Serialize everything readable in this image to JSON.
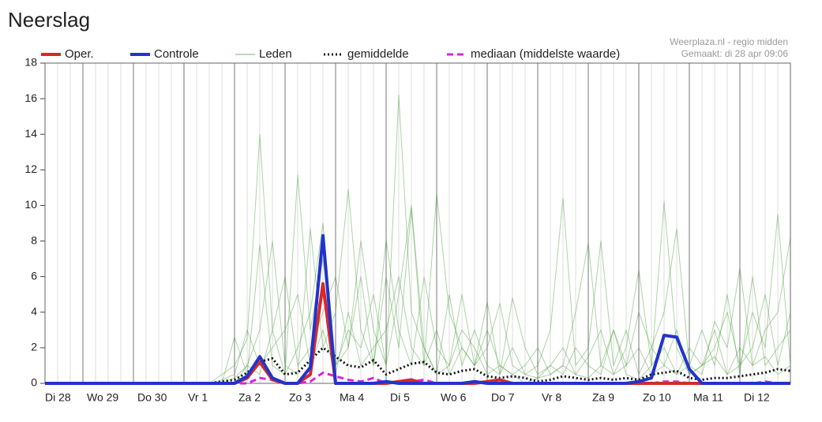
{
  "chart_data": {
    "type": "line",
    "title": "Neerslag",
    "annotations": [
      "Weerplaza.nl - regio midden",
      "Gemaakt: di 28 apr 09:06"
    ],
    "categories": [
      "Di 28",
      null,
      null,
      "Wo 29",
      null,
      null,
      null,
      "Do 30",
      null,
      null,
      null,
      "Vr 1",
      null,
      null,
      null,
      "Za 2",
      null,
      null,
      null,
      "Zo 3",
      null,
      null,
      null,
      "Ma 4",
      null,
      null,
      null,
      "Di 5",
      null,
      null,
      null,
      "Wo 6",
      null,
      null,
      null,
      "Do 7",
      null,
      null,
      null,
      "Vr 8",
      null,
      null,
      null,
      "Za 9",
      null,
      null,
      null,
      "Zo 10",
      null,
      null,
      null,
      "Ma 11",
      null,
      null,
      null,
      "Di 12",
      null,
      null,
      null,
      null
    ],
    "ylim": [
      0,
      18
    ],
    "yticks": [
      0,
      2,
      4,
      6,
      8,
      10,
      12,
      14,
      16,
      18
    ],
    "grid": true,
    "series": [
      {
        "name": "Oper.",
        "color": "#d42a2a",
        "width": 4,
        "values": [
          0,
          0,
          0,
          0,
          0,
          0,
          0,
          0,
          0,
          0,
          0,
          0,
          0,
          0,
          0,
          0,
          0.3,
          1.2,
          0.2,
          0,
          0,
          0.5,
          5.6,
          0,
          0,
          0,
          0,
          0,
          0.1,
          0.2,
          0,
          0,
          0,
          0,
          0,
          0.1,
          0.2,
          0,
          0,
          0,
          0,
          0,
          0,
          0,
          0,
          0,
          0,
          0,
          0,
          0,
          0,
          0,
          0,
          0,
          0,
          0,
          0,
          0,
          0,
          0
        ]
      },
      {
        "name": "Controle",
        "color": "#2233cc",
        "width": 4,
        "values": [
          0,
          0,
          0,
          0,
          0,
          0,
          0,
          0,
          0,
          0,
          0,
          0,
          0,
          0,
          0,
          0,
          0.4,
          1.5,
          0.3,
          0,
          0,
          0.9,
          8.3,
          0,
          0,
          0,
          0,
          0.1,
          0,
          0,
          0,
          0,
          0,
          0,
          0.1,
          0,
          0,
          0,
          0,
          0,
          0,
          0,
          0,
          0,
          0,
          0,
          0,
          0.1,
          0.3,
          2.7,
          2.6,
          0.8,
          0,
          0,
          0,
          0,
          0,
          0,
          0,
          0
        ]
      },
      {
        "name": "Leden",
        "color": "#4a9e3a",
        "width": 1,
        "members": [
          [
            0,
            0,
            0,
            0,
            0,
            0,
            0,
            0,
            0,
            0,
            0,
            0,
            0,
            0,
            0.5,
            1.0,
            2.5,
            14,
            3.0,
            0.5,
            2.0,
            4.0,
            9.0,
            1.0,
            3.0,
            2.0,
            5.0,
            1.0,
            16.2,
            4.0,
            2.0,
            0.5,
            1.0,
            3.0,
            2.0,
            0.5,
            1.0,
            0.5,
            0,
            0.3,
            1.0,
            2.0,
            0.5,
            0.3,
            1.0,
            3.0,
            0.5,
            0.2,
            1.0,
            10.2,
            2.0,
            0.5,
            1.0,
            3.0,
            0.5,
            1.0,
            4.0,
            2.0,
            9.5,
            1.0
          ],
          [
            0,
            0,
            0,
            0,
            0,
            0,
            0,
            0,
            0,
            0,
            0,
            0,
            0,
            0,
            0,
            0.3,
            1.0,
            3.0,
            8.0,
            1.0,
            0.5,
            8.7,
            2.0,
            4.0,
            10.9,
            3.0,
            1.0,
            6.0,
            2.0,
            9.8,
            1.0,
            10.7,
            4.0,
            2.0,
            1.0,
            4.6,
            0.5,
            2.0,
            0.5,
            1.0,
            3.0,
            10.4,
            1.0,
            2.0,
            8.0,
            1.0,
            3.0,
            0.5,
            2.0,
            4.0,
            8.7,
            1.0,
            0.5,
            3.5,
            2.0,
            6.5,
            1.0,
            3.0,
            4.0,
            8.2
          ],
          [
            0,
            0,
            0,
            0,
            0,
            0,
            0,
            0,
            0,
            0,
            0,
            0,
            0,
            0,
            0,
            2.6,
            0.5,
            7.8,
            1.0,
            0.5,
            11.7,
            3.0,
            7.0,
            1.0,
            2.0,
            6.0,
            1.0,
            8.1,
            3.0,
            1.0,
            6.0,
            2.0,
            1.0,
            5.0,
            1.0,
            2.0,
            4.5,
            1.0,
            0.5,
            0.3,
            0.5,
            1.0,
            4.0,
            7.9,
            1.0,
            0.5,
            2.0,
            6.4,
            1.0,
            2.0,
            0.5,
            1.0,
            3.0,
            1.0,
            5.0,
            0.5,
            6.0,
            1.0,
            2.0,
            3.0
          ],
          [
            0,
            0,
            0,
            0,
            0,
            0,
            0,
            0,
            0,
            0,
            0,
            0,
            0,
            0,
            0,
            0,
            1.0,
            0.5,
            3.0,
            6.0,
            1.0,
            2.0,
            4.0,
            6.0,
            2.0,
            8.0,
            3.0,
            1.0,
            5.0,
            10.0,
            2.0,
            0.5,
            5.0,
            1.0,
            3.0,
            1.0,
            0.5,
            4.8,
            2.0,
            0.5,
            1.0,
            0.5,
            2.0,
            1.0,
            0.5,
            3.0,
            1.0,
            2.0,
            0.5,
            1.0,
            3.0,
            0.5,
            1.0,
            2.0,
            4.0,
            1.0,
            2.0,
            5.0,
            1.0,
            4.0
          ],
          [
            0,
            0,
            0,
            0,
            0,
            0,
            0,
            0,
            0,
            0,
            0,
            0,
            0,
            0,
            0.2,
            0.5,
            3.0,
            1.0,
            2.0,
            3.0,
            5.0,
            1.0,
            3.0,
            0.5,
            4.0,
            1.0,
            2.0,
            3.0,
            6.0,
            2.0,
            1.0,
            3.0,
            0.5,
            2.0,
            1.0,
            3.0,
            1.0,
            0.5,
            1.0,
            2.0,
            0.5,
            1.0,
            0.5,
            1.5,
            3.0,
            0.5,
            1.0,
            4.0,
            2.0,
            1.0,
            0.5,
            2.0,
            1.0,
            1.5,
            0.5,
            2.0,
            1.0,
            1.5,
            0.5,
            1.0
          ]
        ]
      },
      {
        "name": "gemiddelde",
        "color": "#111111",
        "width": 3,
        "dash": "2 3",
        "values": [
          0,
          0,
          0,
          0,
          0,
          0,
          0,
          0,
          0,
          0,
          0,
          0,
          0,
          0,
          0.1,
          0.2,
          0.6,
          1.2,
          1.4,
          0.5,
          0.6,
          1.3,
          2.0,
          1.5,
          1.0,
          0.9,
          1.3,
          0.5,
          0.8,
          1.1,
          1.2,
          0.6,
          0.5,
          0.7,
          0.8,
          0.4,
          0.3,
          0.4,
          0.3,
          0.1,
          0.2,
          0.4,
          0.3,
          0.2,
          0.3,
          0.2,
          0.3,
          0.2,
          0.5,
          0.6,
          0.7,
          0.3,
          0.2,
          0.3,
          0.3,
          0.4,
          0.5,
          0.6,
          0.8,
          0.7
        ]
      },
      {
        "name": "mediaan (middelste waarde)",
        "color": "#dd22dd",
        "width": 3,
        "dash": "8 5",
        "values": [
          0,
          0,
          0,
          0,
          0,
          0,
          0,
          0,
          0,
          0,
          0,
          0,
          0,
          0,
          0,
          0,
          0,
          0.3,
          0.2,
          0,
          0,
          0.1,
          0.6,
          0.4,
          0.2,
          0.1,
          0.3,
          0,
          0.1,
          0.1,
          0.2,
          0,
          0,
          0,
          0.1,
          0,
          0,
          0,
          0,
          0,
          0,
          0,
          0,
          0,
          0,
          0,
          0,
          0,
          0,
          0.1,
          0.1,
          0,
          0,
          0,
          0,
          0,
          0,
          0.1,
          0,
          0
        ]
      }
    ]
  }
}
